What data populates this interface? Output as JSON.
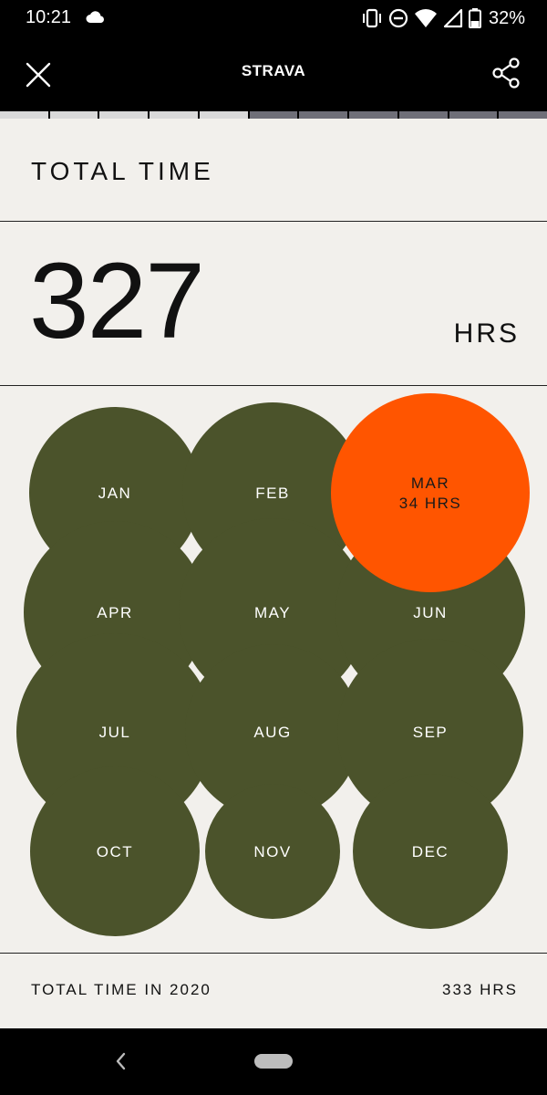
{
  "status_bar": {
    "time": "10:21",
    "battery": "32%",
    "icons": [
      "cloud-icon",
      "vibrate-icon",
      "do-not-disturb-icon",
      "wifi-icon",
      "signal-icon",
      "battery-icon"
    ]
  },
  "header": {
    "logo": "STRAVA",
    "close_icon": "close-icon",
    "share_icon": "share-icon"
  },
  "progress": {
    "total_segments": 11,
    "completed_segments": 5
  },
  "card": {
    "title": "TOTAL TIME",
    "total_value": "327",
    "total_unit": "HRS",
    "months": [
      {
        "label": "JAN"
      },
      {
        "label": "FEB"
      },
      {
        "label": "MAR",
        "sub": "34 HRS",
        "highlight": true
      },
      {
        "label": "APR"
      },
      {
        "label": "MAY"
      },
      {
        "label": "JUN"
      },
      {
        "label": "JUL"
      },
      {
        "label": "AUG"
      },
      {
        "label": "SEP"
      },
      {
        "label": "OCT"
      },
      {
        "label": "NOV"
      },
      {
        "label": "DEC"
      }
    ],
    "footer_label": "TOTAL TIME IN 2020",
    "footer_value": "333 HRS"
  },
  "colors": {
    "background": "#000000",
    "card": "#f2f0ec",
    "bubble": "#4b532b",
    "highlight": "#ff5500",
    "progress_done": "#d9d9d9",
    "progress_pending": "#6f6f78"
  }
}
